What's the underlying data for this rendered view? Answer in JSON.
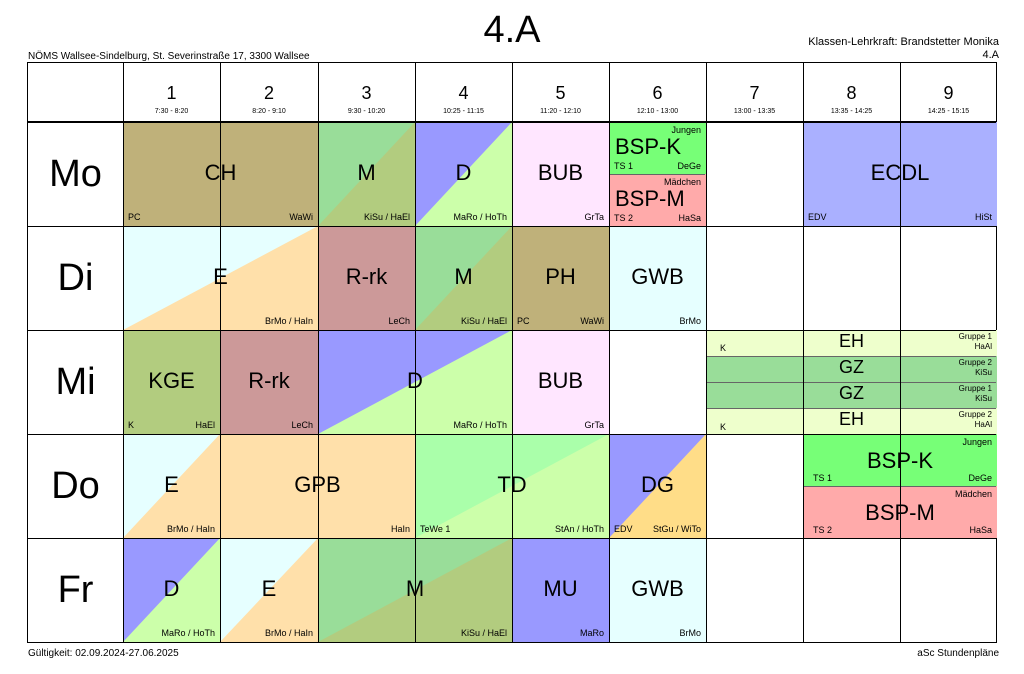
{
  "title": "4.A",
  "school": "NÖMS Wallsee-Sindelburg, St. Severinstraße 17, 3300 Wallsee",
  "teacher_line1": "Klassen-Lehrkraft: Brandstetter Monika",
  "teacher_line2": "4.A",
  "validity": "Gültigkeit: 02.09.2024-27.06.2025",
  "credit": "aSc Stundenpläne",
  "colors": {
    "CH": "#bfb17a",
    "M": "#b2cc7f",
    "M_alt": "#99dd99",
    "D_blue": "#9999ff",
    "D_green": "#ccffaa",
    "BUB": "#ffe6ff",
    "BSP_K": "#77ff77",
    "BSP_M": "#ffaaaa",
    "ECDL": "#aab0ff",
    "E_light": "#e6ffff",
    "E_orange": "#ffe0aa",
    "R_rk": "#cc9999",
    "PH": "#bfb17a",
    "GWB": "#e6ffff",
    "KGE": "#b2cc7f",
    "EH": "#eeffcc",
    "GZ": "#99dd99",
    "GPB": "#ffe0aa",
    "TD": "#ccffaa",
    "TD_dark": "#aaffaa",
    "DG_blue": "#9999ff",
    "DG_orange": "#ffdd88",
    "MU": "#9999ff"
  },
  "periods": [
    {
      "num": "1",
      "time": "7:30 - 8:20"
    },
    {
      "num": "2",
      "time": "8:20 - 9:10"
    },
    {
      "num": "3",
      "time": "9:30 - 10:20"
    },
    {
      "num": "4",
      "time": "10:25 - 11:15"
    },
    {
      "num": "5",
      "time": "11:20 - 12:10"
    },
    {
      "num": "6",
      "time": "12:10 - 13:00"
    },
    {
      "num": "7",
      "time": "13:00 - 13:35"
    },
    {
      "num": "8",
      "time": "13:35 - 14:25"
    },
    {
      "num": "9",
      "time": "14:25 - 15:15"
    }
  ],
  "days": [
    "Mo",
    "Di",
    "Mi",
    "Do",
    "Fr"
  ],
  "lessons": {
    "mo_ch": {
      "subject": "CH",
      "room": "PC",
      "teacher": "WaWi"
    },
    "mo_m": {
      "subject": "M",
      "teacher": "KiSu / HaEl"
    },
    "mo_d": {
      "subject": "D",
      "teacher": "MaRo / HoTh"
    },
    "mo_bub": {
      "subject": "BUB",
      "teacher": "GrTa"
    },
    "mo_bspk": {
      "subject": "BSP-K",
      "group": "Jungen",
      "room": "TS 1",
      "teacher": "DeGe"
    },
    "mo_bspm": {
      "subject": "BSP-M",
      "group": "Mädchen",
      "room": "TS 2",
      "teacher": "HaSa"
    },
    "mo_ecdl": {
      "subject": "ECDL",
      "room": "EDV",
      "teacher": "HiSt"
    },
    "di_e": {
      "subject": "E",
      "teacher": "BrMo / HaIn"
    },
    "di_rrk": {
      "subject": "R-rk",
      "teacher": "LeCh"
    },
    "di_m": {
      "subject": "M",
      "teacher": "KiSu / HaEl"
    },
    "di_ph": {
      "subject": "PH",
      "room": "PC",
      "teacher": "WaWi"
    },
    "di_gwb": {
      "subject": "GWB",
      "teacher": "BrMo"
    },
    "mi_kge": {
      "subject": "KGE",
      "room": "K",
      "teacher": "HaEl"
    },
    "mi_rrk": {
      "subject": "R-rk",
      "teacher": "LeCh"
    },
    "mi_d": {
      "subject": "D",
      "teacher": "MaRo / HoTh"
    },
    "mi_bub": {
      "subject": "BUB",
      "teacher": "GrTa"
    },
    "mi_eh1": {
      "subject": "EH",
      "room": "K",
      "group": "Gruppe 1",
      "teacher": "HaAl"
    },
    "mi_gz2": {
      "subject": "GZ",
      "group": "Gruppe 2",
      "teacher": "KiSu"
    },
    "mi_gz1": {
      "subject": "GZ",
      "group": "Gruppe 1",
      "teacher": "KiSu"
    },
    "mi_eh2": {
      "subject": "EH",
      "room": "K",
      "group": "Gruppe 2",
      "teacher": "HaAl"
    },
    "do_e": {
      "subject": "E",
      "teacher": "BrMo / HaIn"
    },
    "do_gpb": {
      "subject": "GPB",
      "teacher": "HaIn"
    },
    "do_td": {
      "subject": "TD",
      "room": "TeWe 1",
      "teacher": "StAn / HoTh"
    },
    "do_dg": {
      "subject": "DG",
      "room": "EDV",
      "teacher": "StGu / WiTo"
    },
    "do_bspk": {
      "subject": "BSP-K",
      "group": "Jungen",
      "room": "TS 1",
      "teacher": "DeGe"
    },
    "do_bspm": {
      "subject": "BSP-M",
      "group": "Mädchen",
      "room": "TS 2",
      "teacher": "HaSa"
    },
    "fr_d": {
      "subject": "D",
      "teacher": "MaRo / HoTh"
    },
    "fr_e": {
      "subject": "E",
      "teacher": "BrMo / HaIn"
    },
    "fr_m": {
      "subject": "M",
      "teacher": "KiSu / HaEl"
    },
    "fr_mu": {
      "subject": "MU",
      "teacher": "MaRo"
    },
    "fr_gwb": {
      "subject": "GWB",
      "teacher": "BrMo"
    }
  }
}
